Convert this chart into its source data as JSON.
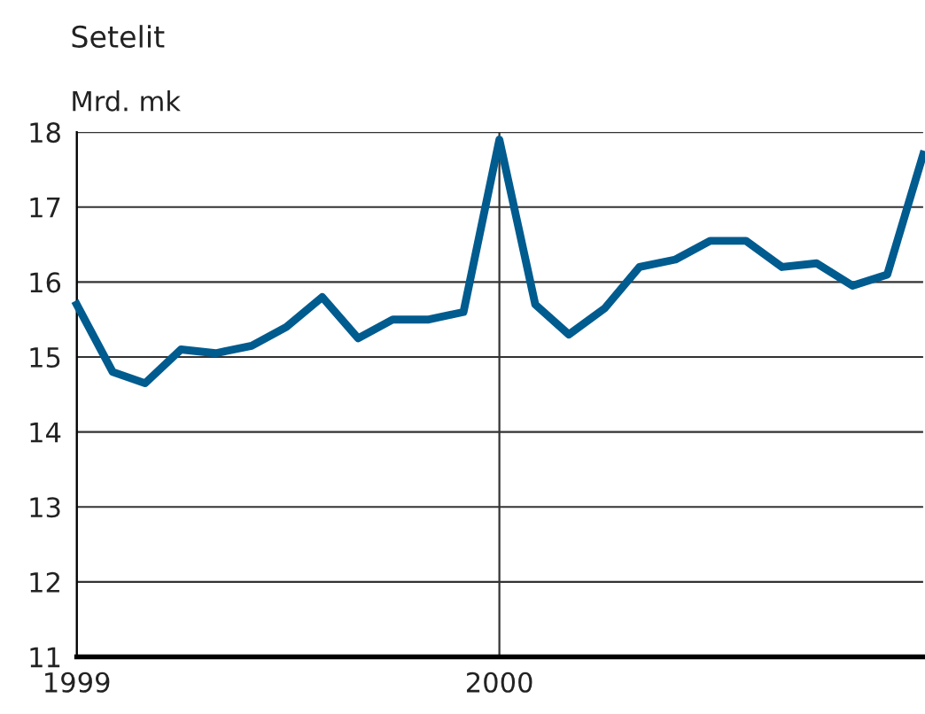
{
  "chart_data": {
    "type": "line",
    "title": "Setelit",
    "ylabel": "Mrd. mk",
    "x": [
      "1999-01",
      "1999-02",
      "1999-03",
      "1999-04",
      "1999-05",
      "1999-06",
      "1999-07",
      "1999-08",
      "1999-09",
      "1999-10",
      "1999-11",
      "1999-12",
      "2000-01",
      "2000-02",
      "2000-03",
      "2000-04",
      "2000-05",
      "2000-06",
      "2000-07",
      "2000-08",
      "2000-09",
      "2000-10",
      "2000-11",
      "2000-12",
      "2001-01"
    ],
    "series": [
      {
        "color": "#005b8f",
        "values": [
          15.7,
          14.8,
          14.65,
          15.1,
          15.05,
          15.15,
          15.4,
          15.8,
          15.25,
          15.5,
          15.5,
          15.6,
          17.9,
          15.7,
          15.3,
          15.65,
          16.2,
          16.3,
          16.55,
          16.55,
          16.2,
          16.25,
          15.95,
          16.1,
          17.7
        ]
      }
    ],
    "xlim": [
      "1999-01",
      "2001-01"
    ],
    "xticks": [
      "1999",
      "2000"
    ],
    "ylim": [
      11,
      18
    ],
    "yticks": [
      11,
      12,
      13,
      14,
      15,
      16,
      17,
      18
    ],
    "grid": true,
    "legend": false,
    "marker": "none",
    "line_style": "solid"
  }
}
